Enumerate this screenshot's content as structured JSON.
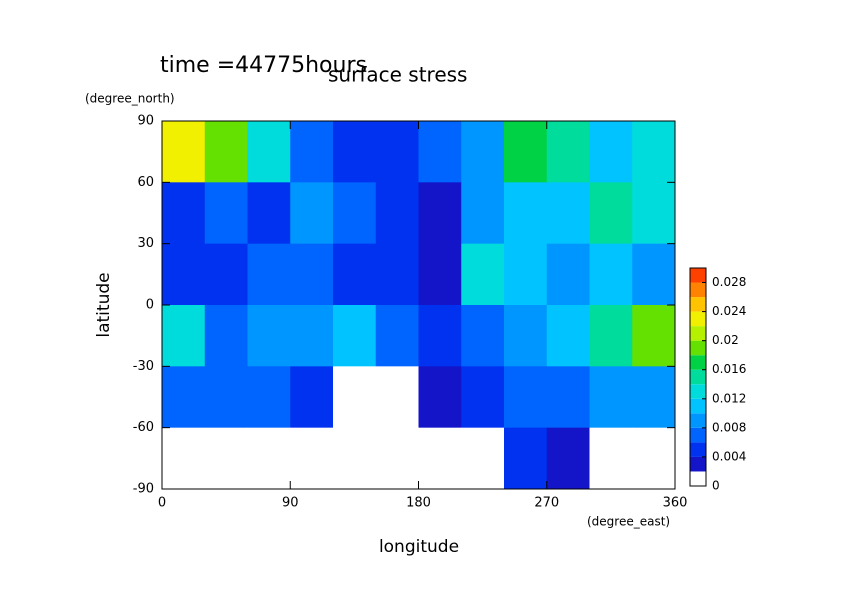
{
  "chart_data": {
    "type": "heatmap",
    "title": "time =44775hours",
    "subtitle": "surface stress",
    "x_label": "longitude",
    "y_label": "latitude",
    "x_unit": "(degree_east)",
    "y_unit": "(degree_north)",
    "x": [
      15,
      45,
      75,
      105,
      135,
      165,
      195,
      225,
      255,
      285,
      315,
      345
    ],
    "y": [
      75,
      45,
      15,
      -15,
      -45,
      -75
    ],
    "x_step": 30,
    "y_step": 30,
    "z": [
      [
        0.022,
        0.018,
        0.012,
        0.006,
        0.005,
        0.005,
        0.006,
        0.008,
        0.016,
        0.014,
        0.01,
        0.012
      ],
      [
        0.004,
        0.006,
        0.004,
        0.008,
        0.006,
        0.004,
        0.003,
        0.008,
        0.01,
        0.01,
        0.014,
        0.012
      ],
      [
        0.004,
        0.005,
        0.006,
        0.006,
        0.004,
        0.004,
        0.003,
        0.012,
        0.01,
        0.008,
        0.01,
        0.008
      ],
      [
        0.012,
        0.006,
        0.008,
        0.008,
        0.01,
        0.006,
        0.005,
        0.006,
        0.008,
        0.01,
        0.014,
        0.018
      ],
      [
        0.006,
        0.006,
        0.006,
        0.004,
        0.001,
        0.001,
        0.003,
        0.005,
        0.006,
        0.006,
        0.008,
        0.008
      ],
      [
        0.001,
        0.001,
        0,
        0,
        0,
        0,
        0,
        0,
        0.004,
        0.002,
        0,
        0
      ]
    ],
    "xlim": [
      0,
      360
    ],
    "xticks": [
      0,
      90,
      180,
      270,
      360
    ],
    "ylim": [
      -90,
      90
    ],
    "yticks": [
      90,
      60,
      30,
      0,
      -30,
      -60,
      -90
    ],
    "clim": [
      0,
      0.03
    ],
    "cticks": [
      0,
      0.004,
      0.008,
      0.012,
      0.016,
      0.02,
      0.024,
      0.028
    ],
    "level_step": 0.002,
    "colors": [
      "#ffffff",
      "#1414c8",
      "#0032f0",
      "#0064ff",
      "#0096ff",
      "#00c3ff",
      "#00dcdc",
      "#00dc9b",
      "#00d246",
      "#64e100",
      "#b4f000",
      "#f0f000",
      "#ffc300",
      "#ff8200",
      "#ff4100"
    ]
  }
}
